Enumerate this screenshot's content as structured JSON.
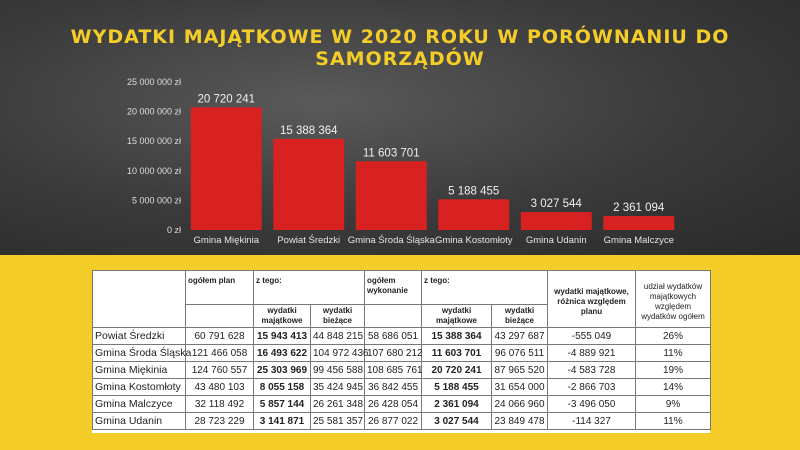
{
  "chart_data": {
    "type": "bar",
    "title": "WYDATKI MAJĄTKOWE W 2020 ROKU W PORÓWNANIU DO SAMORZĄDÓW",
    "categories": [
      "Gmina Miękinia",
      "Powiat Średzki",
      "Gmina Środa Śląska",
      "Gmina Kostomłoty",
      "Gmina Udanin",
      "Gmina Malczyce"
    ],
    "values": [
      20720241,
      15388364,
      11603701,
      5188455,
      3027544,
      2361094
    ],
    "value_labels": [
      "20 720 241",
      "15 388 364",
      "11 603 701",
      "5 188 455",
      "3 027 544",
      "2 361 094"
    ],
    "ylim": [
      0,
      25000000
    ],
    "yticks": [
      0,
      5000000,
      10000000,
      15000000,
      20000000,
      25000000
    ],
    "ytick_labels": [
      "0 zł",
      "5 000 000 zł",
      "10 000 000 zł",
      "15 000 000 zł",
      "20 000 000 zł",
      "25 000 000 zł"
    ],
    "xlabel": "",
    "ylabel": "",
    "bar_color": "#d82222",
    "grid": false
  },
  "colors": {
    "background": "#f5cd28",
    "title": "#f5cd28",
    "bar": "#d82222"
  },
  "table": {
    "headers": {
      "plan": "ogółem plan",
      "z_tego_1": "z tego:",
      "wykonanie": "ogółem wykonanie",
      "z_tego_2": "z tego:",
      "roznica": "wydatki majątkowe, różnica względem planu",
      "udzial": "udział wydatków majątkowych względem wydatków ogółem",
      "majatkowe_1": "wydatki majątkowe",
      "biezace_1": "wydatki bieżące",
      "majatkowe_2": "wydatki majątkowe",
      "biezace_2": "wydatki bieżące"
    },
    "rows": [
      {
        "name": "Powiat Średzki",
        "plan": "60 791 628",
        "plan_maj": "15 943 413",
        "plan_biez": "44 848 215",
        "wyk": "58 686 051",
        "wyk_maj": "15 388 364",
        "wyk_biez": "43 297 687",
        "roznica": "-555 049",
        "udzial": "26%"
      },
      {
        "name": "Gmina Środa Śląska",
        "plan": "121 466 058",
        "plan_maj": "16 493 622",
        "plan_biez": "104 972 436",
        "wyk": "107 680 212",
        "wyk_maj": "11 603 701",
        "wyk_biez": "96 076 511",
        "roznica": "-4 889 921",
        "udzial": "11%"
      },
      {
        "name": "Gmina Miękinia",
        "plan": "124 760 557",
        "plan_maj": "25 303 969",
        "plan_biez": "99 456 588",
        "wyk": "108 685 761",
        "wyk_maj": "20 720 241",
        "wyk_biez": "87 965 520",
        "roznica": "-4 583 728",
        "udzial": "19%"
      },
      {
        "name": "Gmina Kostomłoty",
        "plan": "43 480 103",
        "plan_maj": "8 055 158",
        "plan_biez": "35 424 945",
        "wyk": "36 842 455",
        "wyk_maj": "5 188 455",
        "wyk_biez": "31 654 000",
        "roznica": "-2 866 703",
        "udzial": "14%"
      },
      {
        "name": "Gmina Malczyce",
        "plan": "32 118 492",
        "plan_maj": "5 857 144",
        "plan_biez": "26 261 348",
        "wyk": "26 428 054",
        "wyk_maj": "2 361 094",
        "wyk_biez": "24 066 960",
        "roznica": "-3 496 050",
        "udzial": "9%"
      },
      {
        "name": "Gmina Udanin",
        "plan": "28 723 229",
        "plan_maj": "3 141 871",
        "plan_biez": "25 581 357",
        "wyk": "26 877 022",
        "wyk_maj": "3 027 544",
        "wyk_biez": "23 849 478",
        "roznica": "-114 327",
        "udzial": "11%"
      }
    ]
  }
}
